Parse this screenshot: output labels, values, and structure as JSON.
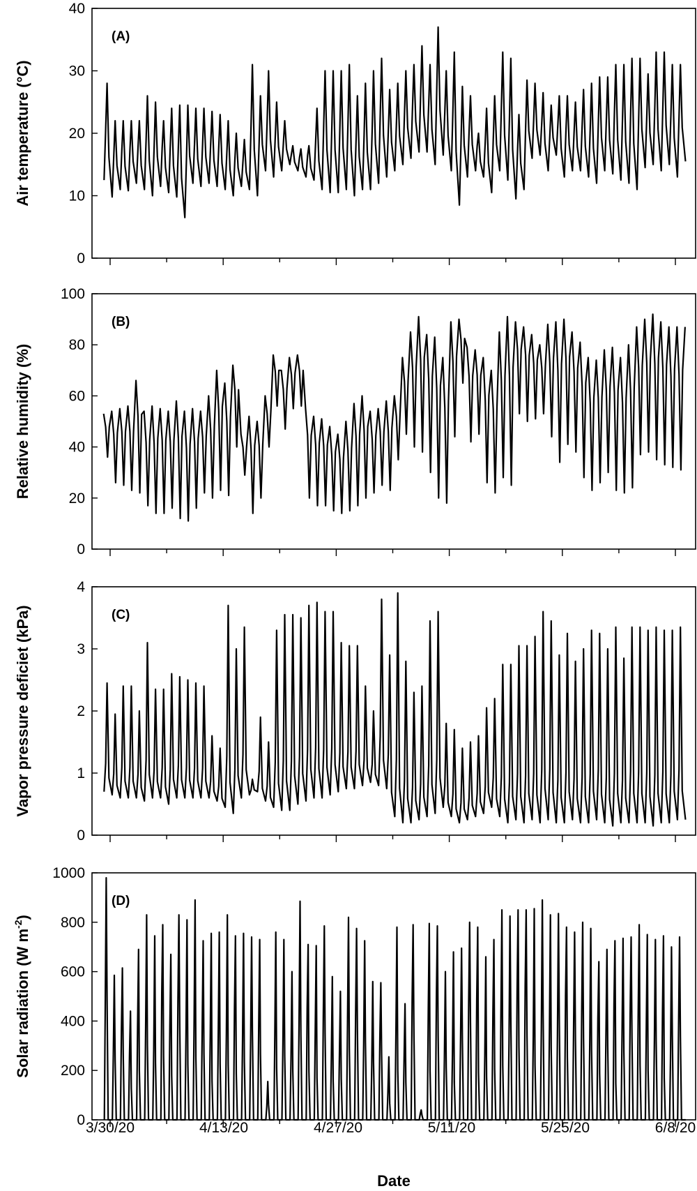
{
  "figure": {
    "xlabel": "Date",
    "x_tick_labels": [
      "3/30/20",
      "4/13/20",
      "4/27/20",
      "5/11/20",
      "5/25/20",
      "6/8/20"
    ]
  },
  "chart_data": [
    {
      "type": "line",
      "panel_label": "(A)",
      "ylabel": "Air temperature (°C)",
      "ylim": [
        0,
        40
      ],
      "y_ticks": [
        0,
        10,
        20,
        30,
        40
      ],
      "y_tick_labels": [
        "0",
        "10",
        "20",
        "30",
        "40"
      ],
      "x_ticks": [
        "3/30/20",
        "4/13/20",
        "4/27/20",
        "5/11/20",
        "5/25/20",
        "6/8/20"
      ],
      "xlim": [
        "3/29/20",
        "6/9/20"
      ],
      "daily_extremes": {
        "date_start": "3/29/20",
        "min": [
          12.5,
          9.8,
          11,
          10.8,
          12,
          11,
          10,
          11.5,
          10.5,
          9.8,
          6.5,
          12,
          11.5,
          12,
          11.5,
          11,
          10,
          11.5,
          11,
          10,
          14,
          13,
          14,
          15,
          14,
          13,
          12.5,
          11,
          10.5,
          10.5,
          11,
          10,
          11,
          11,
          12,
          13,
          14,
          15,
          16,
          17,
          17,
          15,
          16.5,
          14,
          8.5,
          13,
          14,
          13,
          10.5,
          14,
          12.5,
          9.5,
          11,
          16,
          16.5,
          14,
          16.5,
          13,
          14,
          14,
          13,
          12,
          14,
          13.5,
          12.5,
          12,
          11,
          14.5,
          15,
          14,
          15,
          13,
          15.5
        ],
        "max": [
          28,
          22,
          22,
          22,
          22,
          26,
          25,
          22,
          24,
          24.5,
          24.5,
          24,
          24,
          23.5,
          23,
          22,
          20,
          19,
          31,
          26,
          30,
          25,
          22,
          18,
          17.5,
          18,
          24,
          30,
          30,
          30,
          31,
          26,
          28,
          30,
          32,
          27,
          28,
          30,
          31,
          34,
          31,
          37,
          30,
          33,
          27.5,
          26,
          20,
          24,
          26,
          33,
          32,
          23,
          28.5,
          28,
          26.5,
          24.5,
          26,
          26,
          25,
          27,
          28,
          29,
          29,
          31,
          31,
          32,
          32,
          29.5,
          33,
          33,
          31,
          31,
          34
        ]
      }
    },
    {
      "type": "line",
      "panel_label": "(B)",
      "ylabel": "Relative humidity (%)",
      "ylim": [
        0,
        100
      ],
      "y_ticks": [
        0,
        20,
        40,
        60,
        80,
        100
      ],
      "y_tick_labels": [
        "0",
        "20",
        "40",
        "60",
        "80",
        "100"
      ],
      "x_ticks": [
        "3/30/20",
        "4/13/20",
        "4/27/20",
        "5/11/20",
        "5/25/20",
        "6/8/20"
      ],
      "xlim": [
        "3/29/20",
        "6/9/20"
      ],
      "daily_extremes": {
        "date_start": "3/29/20",
        "min": [
          36,
          26,
          25,
          23,
          22,
          17,
          14,
          14,
          16,
          12,
          11,
          16,
          22,
          20,
          23,
          21,
          40,
          29,
          14,
          20,
          40,
          56,
          47,
          55,
          56,
          20,
          17,
          17,
          15,
          14,
          15,
          17,
          20,
          22,
          25,
          23,
          35,
          45,
          40,
          38,
          30,
          20,
          18,
          44,
          65,
          42,
          45,
          26,
          22,
          28,
          25,
          53,
          50,
          51,
          53,
          44,
          34,
          41,
          38,
          28,
          23,
          26,
          30,
          23,
          22,
          24,
          37,
          38,
          35,
          33,
          32,
          31,
          37
        ],
        "max": [
          53,
          54,
          55,
          56,
          66,
          54,
          56,
          55,
          54,
          58,
          54,
          55,
          54,
          60,
          70,
          65,
          72,
          45,
          52,
          50,
          60,
          76,
          70,
          75,
          76,
          55,
          52,
          51,
          48,
          45,
          50,
          57,
          60,
          54,
          55,
          58,
          60,
          75,
          85,
          91,
          84,
          83,
          75,
          89,
          90,
          79,
          78,
          75,
          70,
          85,
          91,
          89,
          87,
          84,
          80,
          88,
          89,
          90,
          85,
          81,
          75,
          74,
          78,
          79,
          75,
          80,
          87,
          90,
          92,
          89,
          87,
          87,
          87
        ]
      }
    },
    {
      "type": "line",
      "panel_label": "(C)",
      "ylabel": "Vapor pressure deficiet (kPa)",
      "ylim": [
        0,
        4
      ],
      "y_ticks": [
        0,
        1,
        2,
        3,
        4
      ],
      "y_tick_labels": [
        "0",
        "1",
        "2",
        "3",
        "4"
      ],
      "x_ticks": [
        "3/30/20",
        "4/13/20",
        "4/27/20",
        "5/11/20",
        "5/25/20",
        "6/8/20"
      ],
      "xlim": [
        "3/29/20",
        "6/9/20"
      ],
      "daily_extremes": {
        "date_start": "3/29/20",
        "min": [
          0.7,
          0.65,
          0.6,
          0.6,
          0.6,
          0.55,
          0.6,
          0.6,
          0.5,
          0.6,
          0.6,
          0.6,
          0.6,
          0.6,
          0.55,
          0.45,
          0.35,
          0.6,
          0.65,
          0.7,
          0.55,
          0.45,
          0.4,
          0.4,
          0.5,
          0.55,
          0.6,
          0.6,
          0.65,
          0.7,
          0.75,
          0.75,
          0.8,
          0.85,
          0.8,
          0.75,
          0.3,
          0.2,
          0.2,
          0.25,
          0.3,
          0.35,
          0.45,
          0.3,
          0.2,
          0.25,
          0.3,
          0.35,
          0.45,
          0.3,
          0.2,
          0.25,
          0.2,
          0.25,
          0.2,
          0.25,
          0.2,
          0.2,
          0.25,
          0.2,
          0.2,
          0.25,
          0.2,
          0.15,
          0.2,
          0.2,
          0.2,
          0.2,
          0.15,
          0.2,
          0.2,
          0.25,
          0.25
        ],
        "max": [
          2.45,
          1.95,
          2.4,
          2.4,
          2.0,
          3.1,
          2.35,
          2.35,
          2.6,
          2.55,
          2.5,
          2.45,
          2.4,
          1.6,
          1.4,
          3.7,
          3.0,
          3.35,
          0.9,
          1.9,
          1.5,
          3.3,
          3.55,
          3.55,
          3.5,
          3.7,
          3.75,
          3.6,
          3.6,
          3.1,
          3.05,
          3.05,
          2.4,
          2.0,
          3.8,
          2.9,
          3.9,
          2.8,
          2.3,
          2.4,
          3.45,
          3.6,
          1.8,
          1.7,
          1.4,
          1.5,
          1.6,
          2.05,
          2.2,
          2.75,
          2.75,
          3.05,
          3.05,
          3.2,
          3.6,
          3.45,
          2.9,
          3.25,
          2.8,
          3.0,
          3.3,
          3.25,
          3.0,
          3.35,
          2.85,
          3.35,
          3.35,
          3.3,
          3.35,
          3.3,
          3.3,
          3.35,
          3.35
        ]
      }
    },
    {
      "type": "line",
      "panel_label": "(D)",
      "ylabel": "Solar radiation (W m⁻²)",
      "ylim": [
        0,
        1000
      ],
      "y_ticks": [
        0,
        200,
        400,
        600,
        800,
        1000
      ],
      "y_tick_labels": [
        "0",
        "200",
        "400",
        "600",
        "800",
        "1000"
      ],
      "x_ticks": [
        "3/30/20",
        "4/13/20",
        "4/27/20",
        "5/11/20",
        "5/25/20",
        "6/8/20"
      ],
      "xlim": [
        "3/29/20",
        "6/9/20"
      ],
      "daily_peaks": {
        "date_start": "3/29/20",
        "night": 0,
        "peak": [
          980,
          585,
          615,
          440,
          690,
          830,
          745,
          790,
          670,
          830,
          810,
          890,
          725,
          755,
          760,
          830,
          745,
          755,
          740,
          730,
          155,
          760,
          730,
          600,
          885,
          710,
          705,
          785,
          580,
          520,
          820,
          775,
          725,
          560,
          555,
          255,
          780,
          470,
          790,
          40,
          795,
          785,
          600,
          680,
          695,
          800,
          780,
          660,
          730,
          850,
          825,
          850,
          850,
          855,
          890,
          830,
          835,
          780,
          760,
          800,
          775,
          640,
          690,
          725,
          735,
          740,
          790,
          750,
          730,
          745,
          700,
          740,
          730
        ]
      }
    }
  ]
}
